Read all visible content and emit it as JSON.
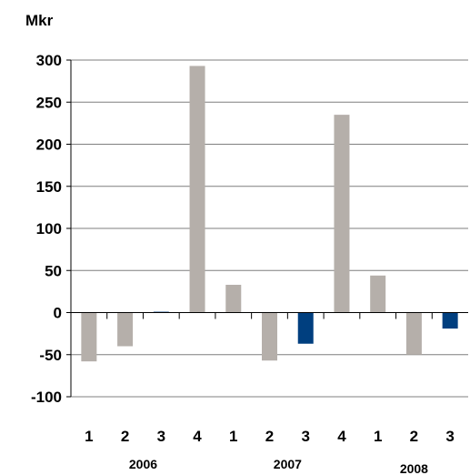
{
  "chart_data": {
    "type": "bar",
    "unit_label": "Mkr",
    "ylim": [
      -100,
      300
    ],
    "yticks": [
      300,
      250,
      200,
      150,
      100,
      50,
      0,
      -50,
      -100
    ],
    "grid": true,
    "categories": [
      "1",
      "2",
      "3",
      "4",
      "1",
      "2",
      "3",
      "4",
      "1",
      "2",
      "3"
    ],
    "values": [
      -58,
      -40,
      1,
      293,
      33,
      -57,
      -37,
      235,
      44,
      -50,
      -19
    ],
    "bar_colors": [
      "#b5afaa",
      "#b5afaa",
      "#003f7f",
      "#b5afaa",
      "#b5afaa",
      "#b5afaa",
      "#003f7f",
      "#b5afaa",
      "#b5afaa",
      "#b5afaa",
      "#003f7f"
    ],
    "groups": [
      {
        "label": "2006",
        "categories": [
          "1",
          "2",
          "3",
          "4"
        ]
      },
      {
        "label": "2007",
        "categories": [
          "1",
          "2",
          "3",
          "4"
        ]
      },
      {
        "label": "2008",
        "categories": [
          "1",
          "2",
          "3"
        ]
      }
    ]
  }
}
